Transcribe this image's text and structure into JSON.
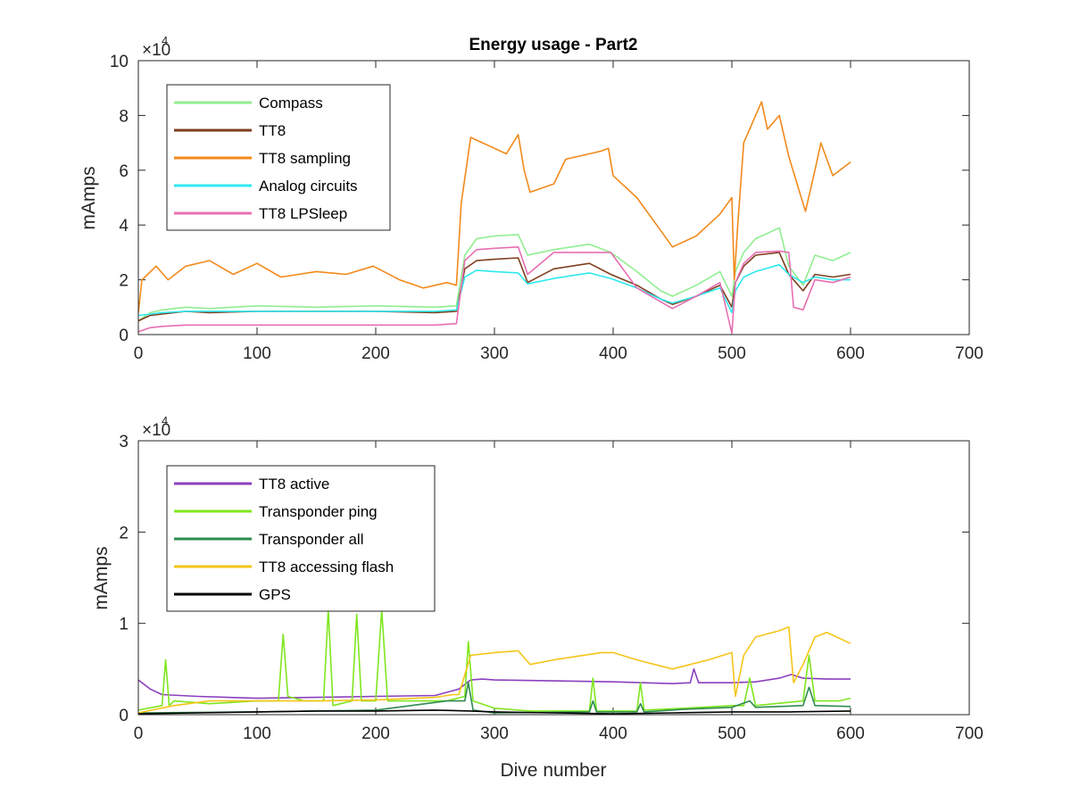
{
  "figure": {
    "title": "Energy usage - Part2"
  },
  "chart_data": [
    {
      "type": "line",
      "title": "Energy usage - Part2",
      "xlabel": "",
      "ylabel": "mAmps",
      "xlim": [
        0,
        700
      ],
      "ylim": [
        0,
        100000
      ],
      "y_exponent_label": "×10",
      "y_exponent": "4",
      "xticks": [
        0,
        100,
        200,
        300,
        400,
        500,
        600,
        700
      ],
      "xtick_labels": [
        "0",
        "100",
        "200",
        "300",
        "400",
        "500",
        "600",
        "700"
      ],
      "yticks": [
        0,
        20000,
        40000,
        60000,
        80000,
        100000
      ],
      "ytick_labels": [
        "0",
        "2",
        "4",
        "6",
        "8",
        "10"
      ],
      "legend_position": "top-left",
      "series": [
        {
          "name": "Compass",
          "color": "#90ee90",
          "x": [
            0,
            10,
            20,
            40,
            60,
            100,
            150,
            200,
            250,
            268,
            275,
            285,
            300,
            320,
            328,
            350,
            380,
            398,
            420,
            440,
            450,
            470,
            490,
            500,
            503,
            510,
            520,
            540,
            548,
            560,
            570,
            585,
            600
          ],
          "y": [
            5000,
            8000,
            9000,
            10000,
            9500,
            10500,
            10000,
            10500,
            10000,
            10500,
            29000,
            35000,
            36000,
            36500,
            29000,
            31000,
            33000,
            30000,
            23000,
            16000,
            14000,
            18000,
            23000,
            14000,
            23000,
            30000,
            35000,
            39000,
            25000,
            18000,
            29000,
            27000,
            30000
          ]
        },
        {
          "name": "TT8",
          "color": "#7f3f1f",
          "x": [
            0,
            10,
            20,
            40,
            60,
            100,
            150,
            200,
            250,
            268,
            275,
            285,
            300,
            320,
            328,
            350,
            380,
            398,
            420,
            440,
            450,
            470,
            490,
            500,
            503,
            510,
            520,
            540,
            548,
            560,
            570,
            585,
            600
          ],
          "y": [
            5000,
            7000,
            7500,
            8500,
            8000,
            8500,
            8500,
            8500,
            8000,
            8500,
            24000,
            27000,
            27500,
            28000,
            19000,
            24000,
            26000,
            22000,
            18000,
            13000,
            11000,
            14000,
            18000,
            10000,
            19000,
            25000,
            29000,
            30000,
            22000,
            16000,
            22000,
            21000,
            22000
          ]
        },
        {
          "name": "TT8 sampling",
          "color": "#f28a1c",
          "x": [
            0,
            3,
            8,
            15,
            25,
            40,
            60,
            80,
            100,
            120,
            150,
            175,
            198,
            220,
            240,
            260,
            268,
            272,
            280,
            290,
            300,
            310,
            320,
            325,
            330,
            350,
            360,
            380,
            390,
            396,
            400,
            420,
            440,
            450,
            470,
            490,
            500,
            502,
            505,
            510,
            520,
            525,
            530,
            540,
            548,
            555,
            562,
            570,
            575,
            585,
            600
          ],
          "y": [
            8000,
            20000,
            22000,
            25000,
            20000,
            25000,
            27000,
            22000,
            26000,
            21000,
            23000,
            22000,
            25000,
            20000,
            17000,
            19000,
            18000,
            48000,
            72000,
            70000,
            68000,
            66000,
            73000,
            60000,
            52000,
            55000,
            64000,
            66000,
            67000,
            68000,
            58000,
            50000,
            38000,
            32000,
            36000,
            44000,
            50000,
            20000,
            40000,
            70000,
            80000,
            85000,
            75000,
            80000,
            65000,
            55000,
            45000,
            60000,
            70000,
            58000,
            63000
          ]
        },
        {
          "name": "Analog circuits",
          "color": "#2ee9ef",
          "x": [
            0,
            10,
            20,
            40,
            60,
            100,
            150,
            200,
            250,
            268,
            275,
            285,
            300,
            320,
            328,
            350,
            380,
            398,
            420,
            440,
            450,
            470,
            490,
            500,
            503,
            510,
            520,
            540,
            548,
            560,
            570,
            585,
            600
          ],
          "y": [
            7000,
            7500,
            8000,
            8500,
            8500,
            8500,
            8500,
            8500,
            8500,
            9000,
            21000,
            23500,
            23000,
            22500,
            18500,
            20500,
            22500,
            20500,
            17000,
            13000,
            11500,
            14000,
            17000,
            8000,
            16000,
            21000,
            23000,
            25500,
            22000,
            19000,
            21000,
            20000,
            20000
          ]
        },
        {
          "name": "TT8 LPSleep",
          "color": "#e76fb1",
          "x": [
            0,
            10,
            20,
            40,
            60,
            100,
            150,
            200,
            250,
            268,
            275,
            285,
            300,
            320,
            328,
            350,
            380,
            398,
            420,
            440,
            450,
            470,
            490,
            500,
            503,
            510,
            520,
            540,
            548,
            552,
            560,
            570,
            585,
            600
          ],
          "y": [
            1000,
            2500,
            3000,
            3500,
            3500,
            3500,
            3500,
            3500,
            3500,
            4000,
            27000,
            31000,
            31500,
            32000,
            22000,
            30000,
            30000,
            30000,
            17000,
            12000,
            9500,
            14000,
            19000,
            500,
            19000,
            26000,
            30000,
            30500,
            30000,
            10000,
            9000,
            20000,
            19000,
            21000
          ]
        }
      ]
    },
    {
      "type": "line",
      "title": "",
      "xlabel": "Dive number",
      "ylabel": "mAmps",
      "xlim": [
        0,
        700
      ],
      "ylim": [
        0,
        30000
      ],
      "y_exponent_label": "×10",
      "y_exponent": "4",
      "xticks": [
        0,
        100,
        200,
        300,
        400,
        500,
        600,
        700
      ],
      "xtick_labels": [
        "0",
        "100",
        "200",
        "300",
        "400",
        "500",
        "600",
        "700"
      ],
      "yticks": [
        0,
        10000,
        20000,
        30000
      ],
      "ytick_labels": [
        "0",
        "1",
        "2",
        "3"
      ],
      "legend_position": "top-left",
      "series": [
        {
          "name": "TT8 active",
          "color": "#8b3fbf",
          "x": [
            0,
            10,
            20,
            50,
            100,
            150,
            200,
            250,
            270,
            280,
            290,
            300,
            350,
            400,
            450,
            465,
            468,
            472,
            500,
            520,
            540,
            550,
            560,
            580,
            600
          ],
          "y": [
            3800,
            2800,
            2200,
            2000,
            1800,
            1900,
            2000,
            2100,
            2800,
            3800,
            3900,
            3800,
            3700,
            3600,
            3400,
            3500,
            5000,
            3500,
            3500,
            3600,
            4000,
            4400,
            4000,
            3900,
            3900
          ]
        },
        {
          "name": "Transponder ping",
          "color": "#7fe61e",
          "x": [
            0,
            20,
            23,
            26,
            30,
            60,
            100,
            118,
            122,
            126,
            140,
            156,
            160,
            164,
            180,
            184,
            188,
            200,
            205,
            210,
            230,
            260,
            275,
            278,
            282,
            300,
            330,
            380,
            383,
            386,
            420,
            423,
            426,
            460,
            500,
            510,
            515,
            520,
            560,
            565,
            570,
            590,
            600
          ],
          "y": [
            500,
            1000,
            6000,
            1000,
            1500,
            1200,
            1500,
            1500,
            8800,
            2000,
            1500,
            1500,
            11500,
            1000,
            1500,
            11000,
            1500,
            1500,
            11500,
            1500,
            1500,
            1500,
            2000,
            8000,
            1500,
            700,
            400,
            400,
            4000,
            400,
            400,
            3500,
            500,
            700,
            1000,
            1000,
            4000,
            1000,
            1500,
            6500,
            1500,
            1500,
            1800
          ]
        },
        {
          "name": "Transponder all",
          "color": "#2e8b4f",
          "x": [
            0,
            100,
            200,
            260,
            275,
            278,
            282,
            300,
            380,
            383,
            386,
            420,
            423,
            426,
            460,
            500,
            515,
            520,
            560,
            565,
            570,
            600
          ],
          "y": [
            200,
            300,
            500,
            1500,
            1500,
            3500,
            500,
            200,
            300,
            1500,
            300,
            300,
            1200,
            300,
            600,
            800,
            1500,
            800,
            1000,
            3000,
            1000,
            900
          ]
        },
        {
          "name": "TT8 accessing flash",
          "color": "#f5c518",
          "x": [
            0,
            30,
            60,
            100,
            150,
            200,
            250,
            265,
            270,
            280,
            300,
            320,
            330,
            350,
            390,
            400,
            420,
            450,
            480,
            500,
            503,
            510,
            520,
            540,
            548,
            552,
            560,
            570,
            580,
            600
          ],
          "y": [
            200,
            1000,
            1500,
            1500,
            1500,
            1600,
            1900,
            2200,
            2200,
            6500,
            6800,
            7000,
            5500,
            6000,
            6800,
            6800,
            6000,
            5000,
            6000,
            6800,
            2000,
            6500,
            8500,
            9200,
            9600,
            3500,
            5500,
            8500,
            9000,
            7800
          ]
        },
        {
          "name": "GPS",
          "color": "#000000",
          "x": [
            0,
            50,
            100,
            150,
            200,
            250,
            280,
            300,
            350,
            400,
            450,
            500,
            550,
            600
          ],
          "y": [
            100,
            200,
            300,
            400,
            400,
            500,
            400,
            300,
            200,
            100,
            200,
            300,
            300,
            400
          ]
        }
      ]
    }
  ]
}
